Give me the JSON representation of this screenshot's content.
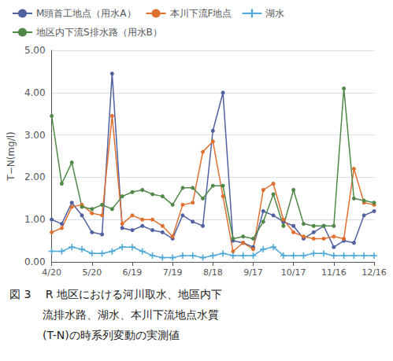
{
  "chart_data": {
    "type": "line",
    "ylabel": "T−N(mg/l)",
    "annotations": [
      "図 3　 R 地区における河川取水、地區内下",
      "　　　流排水路、湖水、本川下流地点水質",
      "　　　(T-N)の時系列変動の実測値"
    ],
    "categories": [
      "4/20",
      null,
      null,
      null,
      "5/20",
      null,
      null,
      null,
      "6/19",
      null,
      null,
      null,
      "7/19",
      null,
      null,
      null,
      "8/18",
      null,
      null,
      null,
      "9/17",
      null,
      null,
      null,
      "10/17",
      null,
      null,
      null,
      "11/16",
      null,
      null,
      null,
      "12/16"
    ],
    "ylim": [
      0.0,
      5.0
    ],
    "yticks": [
      {
        "value": 0,
        "label": "0.00"
      },
      {
        "value": 1,
        "label": "1.00"
      },
      {
        "value": 2,
        "label": "2.00"
      },
      {
        "value": 3,
        "label": "3.00"
      },
      {
        "value": 4,
        "label": "4.00"
      },
      {
        "value": 5,
        "label": "5.00"
      }
    ],
    "grid": true,
    "legend": "top",
    "series": [
      {
        "name": "M頭首工地点（用水A）",
        "color": "#5060a0",
        "marker": "circle",
        "values": [
          1.0,
          0.9,
          1.4,
          1.1,
          0.7,
          0.65,
          4.45,
          0.8,
          0.75,
          0.85,
          0.75,
          0.7,
          0.55,
          1.1,
          0.95,
          0.85,
          3.1,
          4.0,
          0.5,
          0.45,
          0.35,
          1.2,
          1.1,
          0.95,
          0.85,
          0.55,
          0.7,
          0.85,
          0.35,
          0.5,
          0.45,
          1.1,
          1.2
        ]
      },
      {
        "name": "本川下流F地点",
        "color": "#e07030",
        "marker": "circle",
        "values": [
          0.7,
          0.8,
          1.3,
          1.35,
          1.15,
          1.1,
          3.45,
          0.9,
          1.1,
          1.0,
          1.0,
          0.85,
          0.6,
          1.35,
          1.4,
          2.6,
          2.85,
          1.55,
          0.25,
          0.45,
          0.3,
          1.7,
          1.85,
          1.0,
          0.7,
          0.6,
          0.55,
          0.55,
          0.6,
          0.55,
          2.2,
          1.4,
          1.35
        ]
      },
      {
        "name": "湖水",
        "color": "#50a8d8",
        "marker": "plus",
        "values": [
          0.25,
          0.25,
          0.35,
          0.3,
          0.2,
          0.2,
          0.25,
          0.35,
          0.35,
          0.25,
          0.15,
          0.1,
          0.1,
          0.15,
          0.15,
          0.1,
          0.15,
          0.2,
          0.15,
          0.15,
          0.15,
          0.3,
          0.35,
          0.15,
          0.15,
          0.15,
          0.2,
          0.2,
          0.15,
          0.15,
          0.15,
          0.15,
          0.15
        ]
      },
      {
        "name": "地区内下流S排水路（用水B）",
        "color": "#508848",
        "marker": "circle",
        "values": [
          3.45,
          1.85,
          2.35,
          1.3,
          1.25,
          1.35,
          1.25,
          1.55,
          1.65,
          1.7,
          1.6,
          1.55,
          1.35,
          1.75,
          1.75,
          1.5,
          1.8,
          1.8,
          0.55,
          0.6,
          0.55,
          0.95,
          1.6,
          0.85,
          1.7,
          0.9,
          0.85,
          0.85,
          0.85,
          4.1,
          1.5,
          1.45,
          1.4
        ]
      }
    ]
  }
}
